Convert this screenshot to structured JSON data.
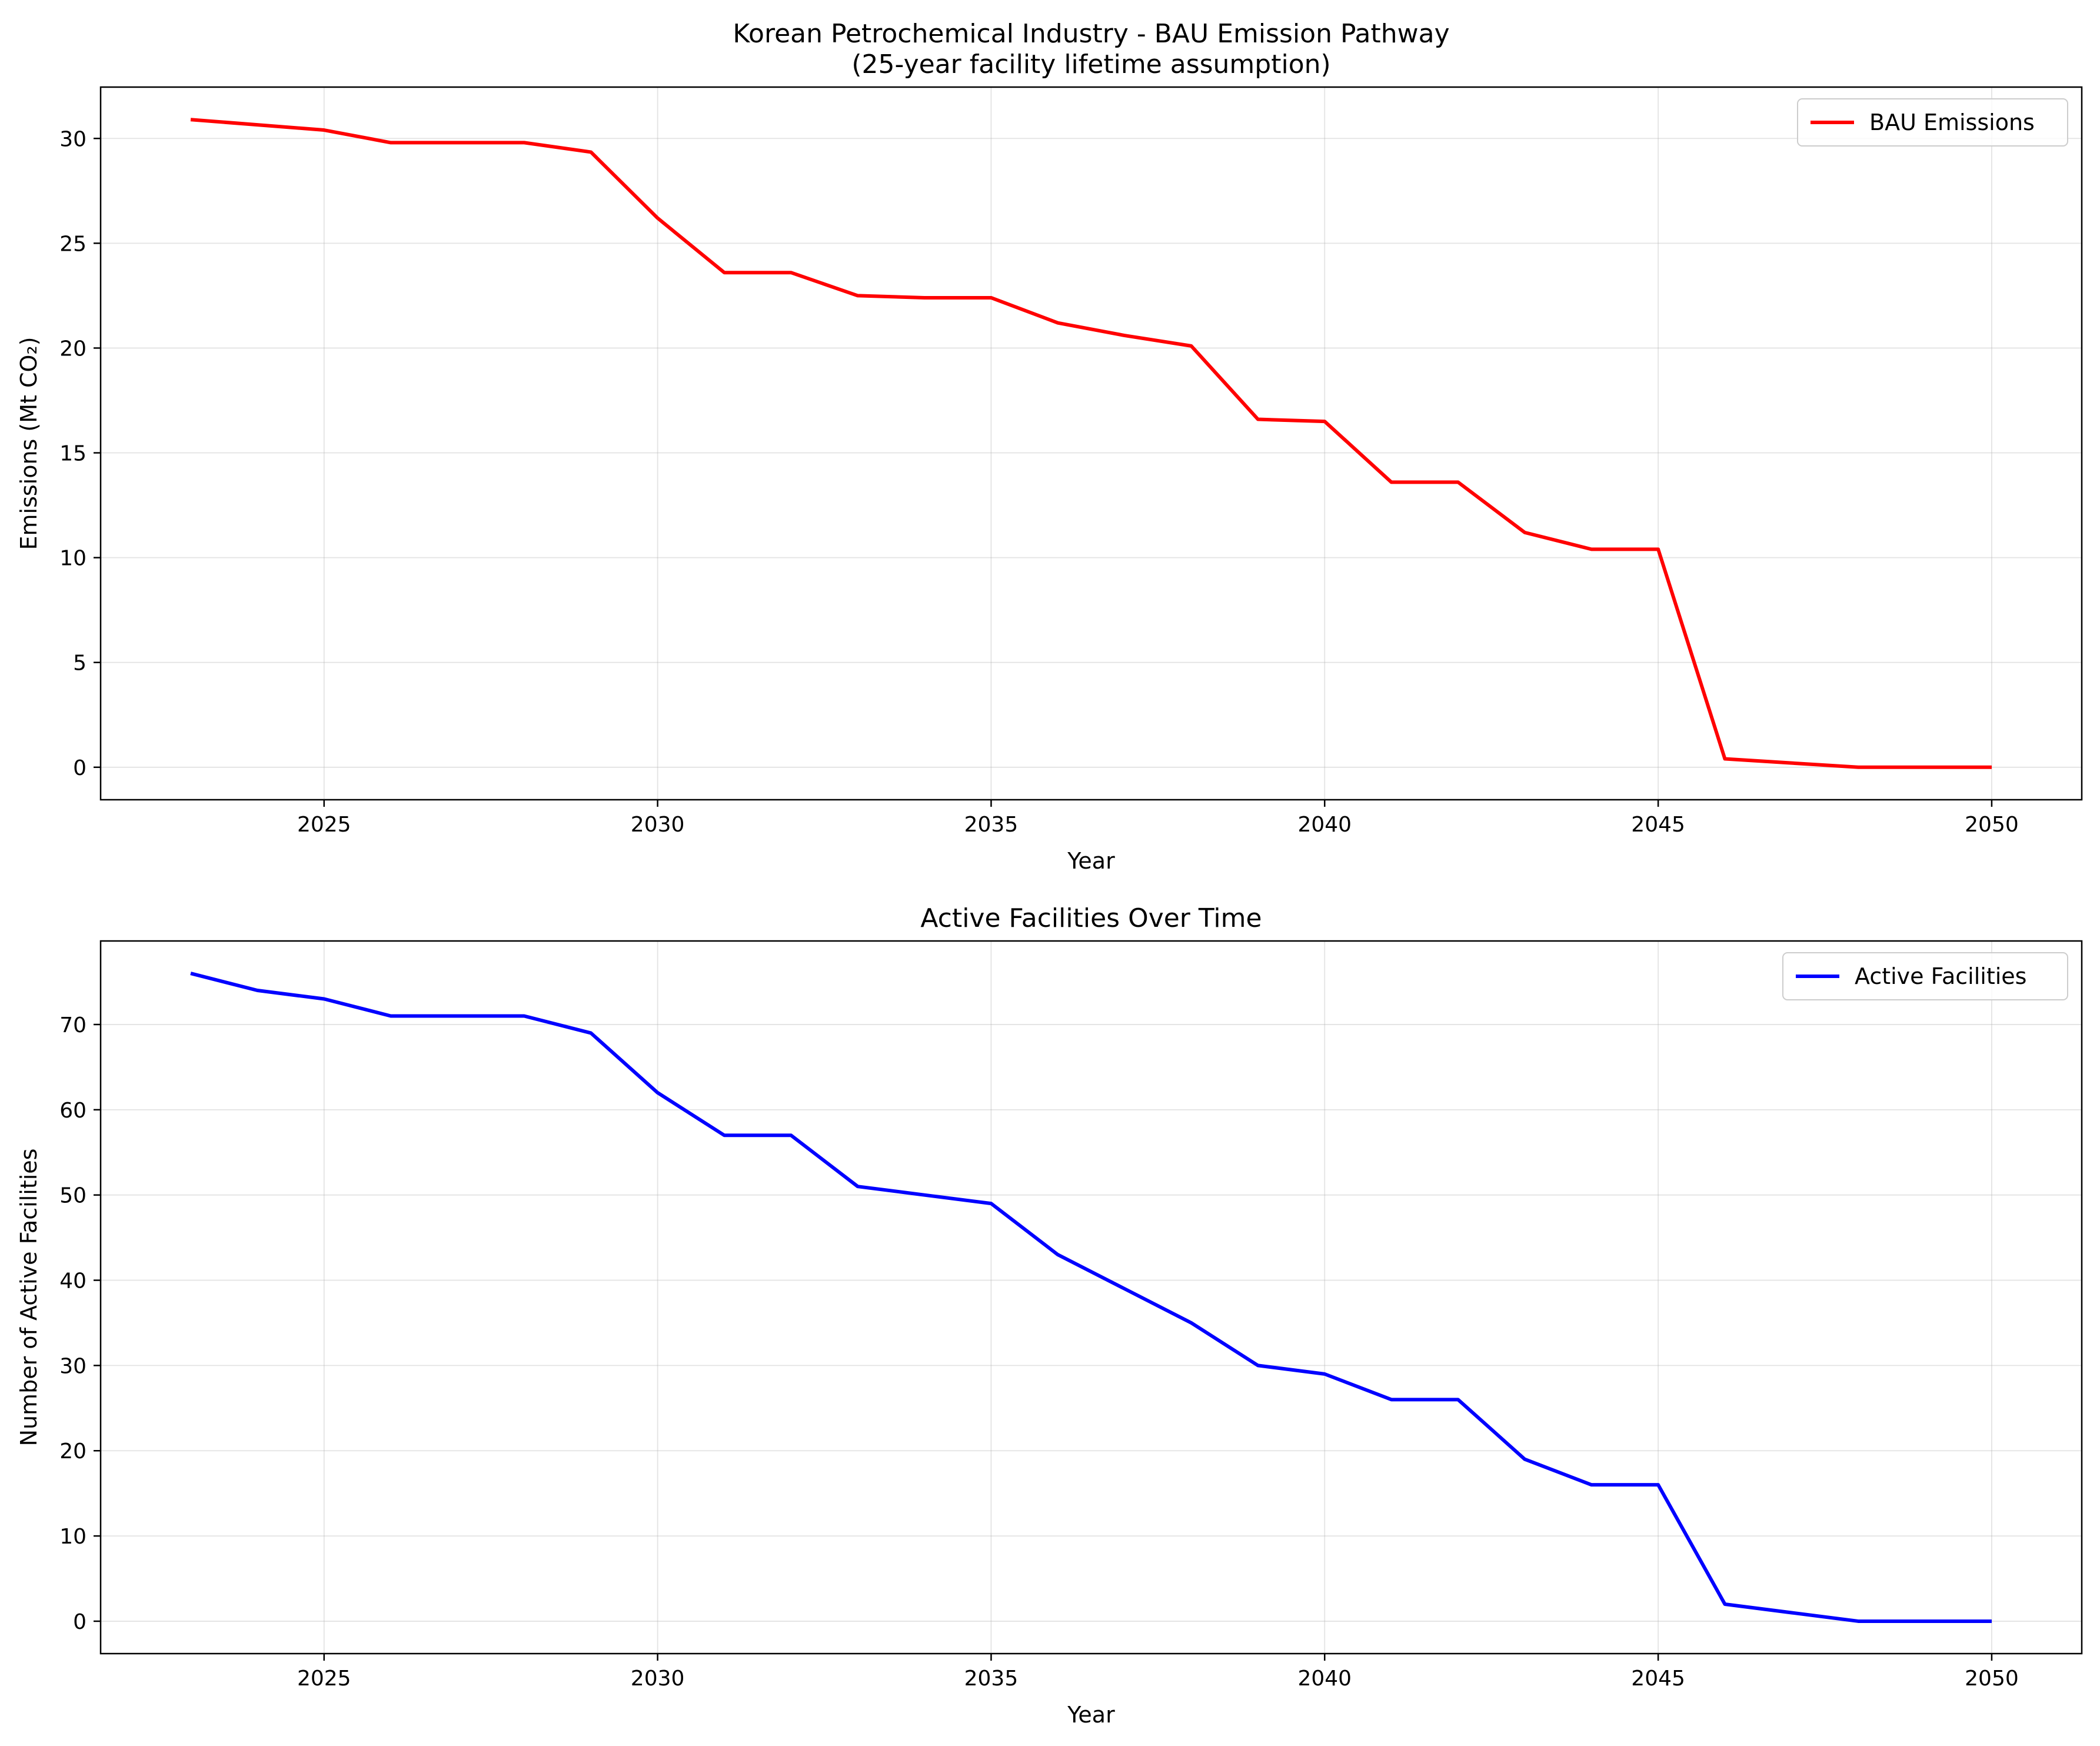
{
  "chart_data": [
    {
      "type": "line",
      "title_lines": [
        "Korean Petrochemical Industry - BAU Emission Pathway",
        "(25-year facility lifetime assumption)"
      ],
      "xlabel": "Year",
      "ylabel": "Emissions (Mt CO₂)",
      "xlim": [
        2021.65,
        2051.35
      ],
      "ylim": [
        -1.55,
        32.45
      ],
      "xticks": [
        2025,
        2030,
        2035,
        2040,
        2045,
        2050
      ],
      "yticks": [
        0,
        5,
        10,
        15,
        20,
        25,
        30
      ],
      "grid": true,
      "legend_position": "top-right",
      "x": [
        2023,
        2024,
        2025,
        2026,
        2027,
        2028,
        2029,
        2030,
        2031,
        2032,
        2033,
        2034,
        2035,
        2036,
        2037,
        2038,
        2039,
        2040,
        2041,
        2042,
        2043,
        2044,
        2045,
        2046,
        2047,
        2048,
        2049,
        2050
      ],
      "series": [
        {
          "name": "BAU Emissions",
          "color": "#ff0000",
          "values": [
            30.9,
            30.65,
            30.4,
            29.8,
            29.8,
            29.8,
            29.35,
            26.2,
            23.6,
            23.6,
            22.5,
            22.4,
            22.4,
            21.2,
            20.6,
            20.1,
            16.6,
            16.5,
            13.6,
            13.6,
            11.2,
            10.4,
            10.4,
            0.4,
            0.2,
            0.0,
            0.0,
            0.0
          ]
        }
      ]
    },
    {
      "type": "line",
      "title_lines": [
        "Active Facilities Over Time"
      ],
      "xlabel": "Year",
      "ylabel": "Number of Active Facilities",
      "xlim": [
        2021.65,
        2051.35
      ],
      "ylim": [
        -3.8,
        79.8
      ],
      "xticks": [
        2025,
        2030,
        2035,
        2040,
        2045,
        2050
      ],
      "yticks": [
        0,
        10,
        20,
        30,
        40,
        50,
        60,
        70
      ],
      "grid": true,
      "legend_position": "top-right",
      "x": [
        2023,
        2024,
        2025,
        2026,
        2027,
        2028,
        2029,
        2030,
        2031,
        2032,
        2033,
        2034,
        2035,
        2036,
        2037,
        2038,
        2039,
        2040,
        2041,
        2042,
        2043,
        2044,
        2045,
        2046,
        2047,
        2048,
        2049,
        2050
      ],
      "series": [
        {
          "name": "Active Facilities",
          "color": "#0000ff",
          "values": [
            76,
            74,
            73,
            71,
            71,
            71,
            69,
            62,
            57,
            57,
            51,
            50,
            49,
            43,
            39,
            35,
            30,
            29,
            26,
            26,
            19,
            16,
            16,
            2,
            1,
            0,
            0,
            0
          ]
        }
      ]
    }
  ]
}
